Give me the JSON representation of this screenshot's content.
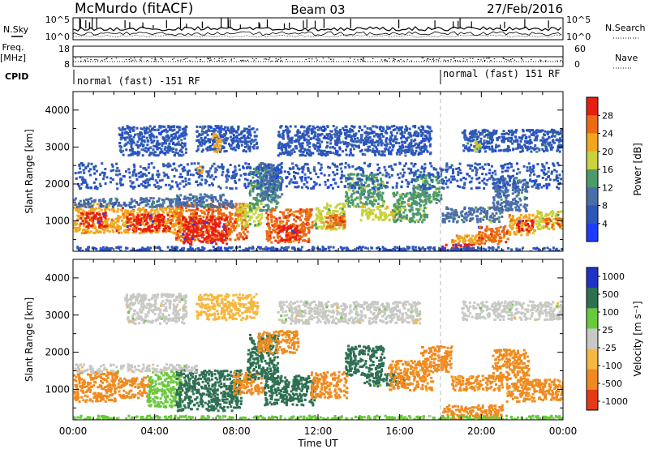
{
  "header": {
    "station": "McMurdo (fitACF)",
    "beam": "Beam 03",
    "date": "27/Feb/2016"
  },
  "summary_panels": {
    "nsky_label": "N.Sky",
    "nsky_ticks": [
      "10^5",
      "10^0"
    ],
    "nsearch_label": "N.Search",
    "nsearch_ticks": [
      "10^5",
      "10^0"
    ],
    "freq_label_line1": "Freq.",
    "freq_label_line2": "[MHz]",
    "freq_ticks": [
      "18",
      "8"
    ],
    "nave_label": "Nave",
    "nave_ticks": [
      "60",
      "0"
    ],
    "cpid_label": "CPID",
    "cpid_segments": [
      {
        "start_hour": 0,
        "end_hour": 18,
        "text": "normal (fast) -151 RF"
      },
      {
        "start_hour": 18,
        "end_hour": 24,
        "text": "normal (fast) 151 RF"
      }
    ]
  },
  "chart_data": [
    {
      "type": "heatmap",
      "name": "power",
      "ylabel": "Slant Range [km]",
      "xlabel": "",
      "xlim": [
        0,
        24
      ],
      "ylim": [
        180,
        4500
      ],
      "yticks": [
        1000,
        2000,
        3000,
        4000
      ],
      "colorbar": {
        "label": "Power [dB]",
        "range": [
          0,
          32
        ],
        "ticks": [
          "28",
          "24",
          "20",
          "16",
          "12",
          "8",
          "4"
        ],
        "levels": [
          {
            "min": 0,
            "max": 4,
            "color": "#1e3cff"
          },
          {
            "min": 4,
            "max": 8,
            "color": "#2b57b8"
          },
          {
            "min": 8,
            "max": 12,
            "color": "#4a6ea8"
          },
          {
            "min": 12,
            "max": 16,
            "color": "#4b9a6a"
          },
          {
            "min": 16,
            "max": 20,
            "color": "#c8d23c"
          },
          {
            "min": 20,
            "max": 24,
            "color": "#f2a51f"
          },
          {
            "min": 24,
            "max": 28,
            "color": "#ec6a12"
          },
          {
            "min": 28,
            "max": 32,
            "color": "#e81e10"
          }
        ]
      },
      "regions": [
        {
          "t0": 0.0,
          "t1": 2.0,
          "r0": 700,
          "r1": 1500,
          "value": 22
        },
        {
          "t0": 0.3,
          "t1": 1.6,
          "r0": 850,
          "r1": 1250,
          "value": 29
        },
        {
          "t0": 0.0,
          "t1": 5.5,
          "r0": 1400,
          "r1": 1650,
          "value": 9
        },
        {
          "t0": 2.0,
          "t1": 5.3,
          "r0": 700,
          "r1": 1400,
          "value": 24
        },
        {
          "t0": 2.6,
          "t1": 4.8,
          "r0": 750,
          "r1": 1200,
          "value": 29
        },
        {
          "t0": 5.0,
          "t1": 8.5,
          "r0": 500,
          "r1": 1500,
          "value": 27
        },
        {
          "t0": 5.3,
          "t1": 7.5,
          "r0": 400,
          "r1": 1150,
          "value": 30
        },
        {
          "t0": 5.0,
          "t1": 7.8,
          "r0": 1400,
          "r1": 1750,
          "value": 9
        },
        {
          "t0": 8.0,
          "t1": 9.2,
          "r0": 900,
          "r1": 1500,
          "value": 17
        },
        {
          "t0": 8.6,
          "t1": 10.0,
          "r0": 1300,
          "r1": 2500,
          "value": 14
        },
        {
          "t0": 9.4,
          "t1": 11.7,
          "r0": 450,
          "r1": 1350,
          "value": 27
        },
        {
          "t0": 10.0,
          "t1": 11.2,
          "r0": 500,
          "r1": 900,
          "value": 30
        },
        {
          "t0": 11.8,
          "t1": 13.3,
          "r0": 800,
          "r1": 1500,
          "value": 18
        },
        {
          "t0": 12.3,
          "t1": 13.3,
          "r0": 850,
          "r1": 1200,
          "value": 28
        },
        {
          "t0": 13.3,
          "t1": 15.2,
          "r0": 1400,
          "r1": 2300,
          "value": 15
        },
        {
          "t0": 14.0,
          "t1": 16.0,
          "r0": 1050,
          "r1": 1450,
          "value": 20
        },
        {
          "t0": 15.6,
          "t1": 17.3,
          "r0": 1000,
          "r1": 1800,
          "value": 16
        },
        {
          "t0": 16.6,
          "t1": 18.0,
          "r0": 1500,
          "r1": 2300,
          "value": 14
        },
        {
          "t0": 18.0,
          "t1": 21.0,
          "r0": 1000,
          "r1": 1400,
          "value": 12
        },
        {
          "t0": 18.0,
          "t1": 19.6,
          "r0": 180,
          "r1": 420,
          "value": 30
        },
        {
          "t0": 18.5,
          "t1": 20.5,
          "r0": 400,
          "r1": 650,
          "value": 23
        },
        {
          "t0": 19.8,
          "t1": 21.3,
          "r0": 400,
          "r1": 900,
          "value": 28
        },
        {
          "t0": 20.5,
          "t1": 22.2,
          "r0": 1300,
          "r1": 2200,
          "value": 11
        },
        {
          "t0": 21.3,
          "t1": 22.6,
          "r0": 650,
          "r1": 1200,
          "value": 23
        },
        {
          "t0": 21.7,
          "t1": 22.5,
          "r0": 750,
          "r1": 1050,
          "value": 30
        },
        {
          "t0": 22.6,
          "t1": 24.0,
          "r0": 800,
          "r1": 1300,
          "value": 18
        },
        {
          "t0": 23.0,
          "t1": 24.0,
          "r0": 850,
          "r1": 1100,
          "value": 26
        },
        {
          "t0": 0.0,
          "t1": 24.0,
          "r0": 180,
          "r1": 330,
          "value": 6
        },
        {
          "t0": 2.2,
          "t1": 5.5,
          "r0": 2800,
          "r1": 3600,
          "value": 7
        },
        {
          "t0": 6.0,
          "t1": 9.0,
          "r0": 2900,
          "r1": 3600,
          "value": 8
        },
        {
          "t0": 10.0,
          "t1": 17.5,
          "r0": 2800,
          "r1": 3600,
          "value": 7
        },
        {
          "t0": 19.0,
          "t1": 24.0,
          "r0": 2900,
          "r1": 3500,
          "value": 8
        },
        {
          "t0": 6.8,
          "t1": 7.2,
          "r0": 2900,
          "r1": 3400,
          "value": 22
        },
        {
          "t0": 19.6,
          "t1": 19.9,
          "r0": 2900,
          "r1": 3200,
          "value": 18
        },
        {
          "t0": 6.0,
          "t1": 6.3,
          "r0": 2300,
          "r1": 2500,
          "value": 22
        },
        {
          "t0": 9.0,
          "t1": 10.2,
          "r0": 1600,
          "r1": 2600,
          "value": 10
        },
        {
          "t0": 0.0,
          "t1": 24.0,
          "r0": 1900,
          "r1": 2600,
          "value": 6
        }
      ]
    },
    {
      "type": "heatmap",
      "name": "velocity",
      "ylabel": "Slant Range [km]",
      "xlabel": "Time UT",
      "xlim": [
        0,
        24
      ],
      "ylim": [
        180,
        4500
      ],
      "xticks": [
        "00:00",
        "04:00",
        "08:00",
        "12:00",
        "16:00",
        "20:00",
        "00:00"
      ],
      "yticks": [
        1000,
        2000,
        3000,
        4000
      ],
      "colorbar": {
        "label": "Velocity [m s⁻¹]",
        "ticks": [
          "1000",
          "500",
          "100",
          "25",
          "-25",
          "-100",
          "-500",
          "-1000"
        ],
        "levels": [
          {
            "min": 500,
            "max": 1000,
            "color": "#1f33c7"
          },
          {
            "min": 100,
            "max": 500,
            "color": "#2d7052"
          },
          {
            "min": 25,
            "max": 100,
            "color": "#69c93c"
          },
          {
            "min": -25,
            "max": 25,
            "color": "#c8c8c4"
          },
          {
            "min": -100,
            "max": -25,
            "color": "#f5b840"
          },
          {
            "min": -500,
            "max": -100,
            "color": "#f08a1f"
          },
          {
            "min": -1000,
            "max": -500,
            "color": "#e43a16"
          }
        ]
      },
      "regions": [
        {
          "t0": 0.0,
          "t1": 2.2,
          "r0": 700,
          "r1": 1500,
          "value": -300
        },
        {
          "t0": 2.2,
          "t1": 3.8,
          "r0": 800,
          "r1": 1350,
          "value": -200
        },
        {
          "t0": 3.6,
          "t1": 5.3,
          "r0": 550,
          "r1": 1500,
          "value": 60
        },
        {
          "t0": 5.0,
          "t1": 8.2,
          "r0": 450,
          "r1": 1550,
          "value": 300
        },
        {
          "t0": 7.8,
          "t1": 9.3,
          "r0": 900,
          "r1": 1500,
          "value": -200
        },
        {
          "t0": 8.5,
          "t1": 10.0,
          "r0": 1300,
          "r1": 2500,
          "value": 200
        },
        {
          "t0": 9.3,
          "t1": 11.8,
          "r0": 600,
          "r1": 1400,
          "value": 300
        },
        {
          "t0": 11.6,
          "t1": 13.4,
          "r0": 800,
          "r1": 1500,
          "value": -200
        },
        {
          "t0": 13.3,
          "t1": 15.2,
          "r0": 1400,
          "r1": 2200,
          "value": 300
        },
        {
          "t0": 14.2,
          "t1": 16.2,
          "r0": 1100,
          "r1": 1450,
          "value": 200
        },
        {
          "t0": 15.4,
          "t1": 17.6,
          "r0": 1000,
          "r1": 1800,
          "value": -150
        },
        {
          "t0": 17.0,
          "t1": 18.5,
          "r0": 1500,
          "r1": 2200,
          "value": -300
        },
        {
          "t0": 18.5,
          "t1": 21.0,
          "r0": 1000,
          "r1": 1400,
          "value": -150
        },
        {
          "t0": 18.0,
          "t1": 21.0,
          "r0": 180,
          "r1": 600,
          "value": -250
        },
        {
          "t0": 20.5,
          "t1": 22.3,
          "r0": 1300,
          "r1": 2100,
          "value": -200
        },
        {
          "t0": 21.2,
          "t1": 24.0,
          "r0": 700,
          "r1": 1300,
          "value": -200
        },
        {
          "t0": 0.0,
          "t1": 24.0,
          "r0": 180,
          "r1": 320,
          "value": 40
        },
        {
          "t0": 0.0,
          "t1": 6.0,
          "r0": 1500,
          "r1": 1700,
          "value": 0
        },
        {
          "t0": 2.5,
          "t1": 5.5,
          "r0": 2800,
          "r1": 3600,
          "value": 0
        },
        {
          "t0": 6.0,
          "t1": 9.0,
          "r0": 2900,
          "r1": 3600,
          "value": -60
        },
        {
          "t0": 10.0,
          "t1": 17.0,
          "r0": 2800,
          "r1": 3400,
          "value": 0
        },
        {
          "t0": 19.0,
          "t1": 24.0,
          "r0": 2900,
          "r1": 3400,
          "value": 0
        },
        {
          "t0": 9.0,
          "t1": 11.0,
          "r0": 2000,
          "r1": 2600,
          "value": -150
        }
      ]
    }
  ]
}
